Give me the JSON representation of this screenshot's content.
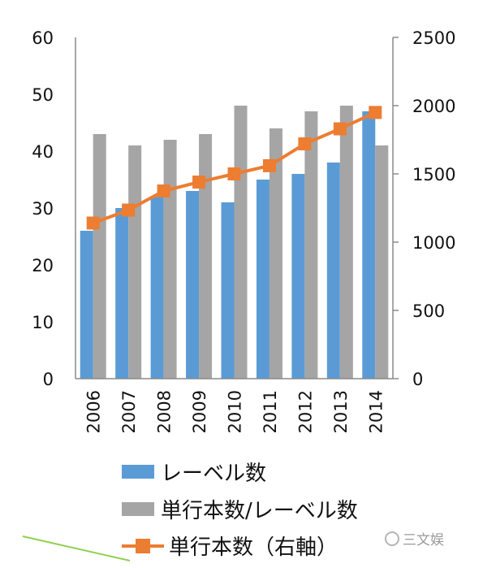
{
  "chart_data": {
    "type": "bar+line",
    "categories": [
      "2006",
      "2007",
      "2008",
      "2009",
      "2010",
      "2011",
      "2012",
      "2013",
      "2014"
    ],
    "series": [
      {
        "name": "レーベル数",
        "kind": "bar",
        "axis": "left",
        "color": "#5B9BD5",
        "values": [
          26,
          30,
          32,
          33,
          31,
          35,
          36,
          38,
          47
        ]
      },
      {
        "name": "単行本数/レーベル数",
        "kind": "bar",
        "axis": "left",
        "color": "#A5A5A5",
        "values": [
          43,
          41,
          42,
          43,
          48,
          44,
          47,
          48,
          41
        ]
      },
      {
        "name": "単行本数（右軸）",
        "kind": "line",
        "axis": "right",
        "color": "#ED7D31",
        "marker": "square",
        "values": [
          1140,
          1235,
          1375,
          1440,
          1500,
          1560,
          1720,
          1830,
          1950
        ]
      }
    ],
    "y_left": {
      "min": 0,
      "max": 60,
      "ticks": [
        "0",
        "10",
        "20",
        "30",
        "40",
        "50",
        "60"
      ]
    },
    "y_right": {
      "min": 0,
      "max": 2500,
      "ticks": [
        "0",
        "500",
        "1000",
        "1500",
        "2000",
        "2500"
      ]
    },
    "grid": false,
    "legend_position": "bottom"
  },
  "watermark": {
    "text": "三文娱",
    "icon": "wechat-icon"
  }
}
